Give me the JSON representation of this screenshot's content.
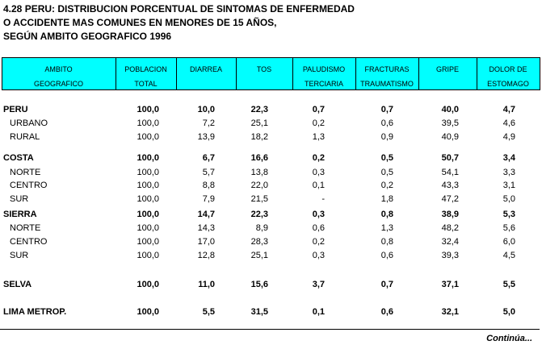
{
  "title": [
    "4.28  PERU: DISTRIBUCION PORCENTUAL DE SINTOMAS DE ENFERMEDAD",
    "O ACCIDENTE MAS COMUNES EN MENORES DE 15 AÑOS,",
    "SEGÚN AMBITO GEOGRAFICO 1996"
  ],
  "table": {
    "columns": [
      [
        "AMBITO",
        "GEOGRAFICO"
      ],
      [
        "POBLACION",
        "TOTAL"
      ],
      [
        "DIARREA"
      ],
      [
        "TOS"
      ],
      [
        "PALUDISMO",
        "TERCIARIA"
      ],
      [
        "FRACTURAS",
        "TRAUMATISMO"
      ],
      [
        "GRIPE"
      ],
      [
        "DOLOR DE",
        "ESTOMAGO"
      ]
    ],
    "rows": [
      {
        "label": "PERU",
        "bold": true,
        "cells": [
          "100,0",
          "10,0",
          "22,3",
          "0,7",
          "0,7",
          "40,0",
          "4,7"
        ]
      },
      {
        "label": "URBANO",
        "bold": false,
        "cells": [
          "100,0",
          "7,2",
          "25,1",
          "0,2",
          "0,6",
          "39,5",
          "4,6"
        ]
      },
      {
        "label": "RURAL",
        "bold": false,
        "cells": [
          "100,0",
          "13,9",
          "18,2",
          "1,3",
          "0,9",
          "40,9",
          "4,9"
        ]
      },
      {
        "label": "COSTA",
        "bold": true,
        "cells": [
          "100,0",
          "6,7",
          "16,6",
          "0,2",
          "0,5",
          "50,7",
          "3,4"
        ]
      },
      {
        "label": "NORTE",
        "bold": false,
        "cells": [
          "100,0",
          "5,7",
          "13,8",
          "0,3",
          "0,5",
          "54,1",
          "3,3"
        ]
      },
      {
        "label": "CENTRO",
        "bold": false,
        "cells": [
          "100,0",
          "8,8",
          "22,0",
          "0,1",
          "0,2",
          "43,3",
          "3,1"
        ]
      },
      {
        "label": "SUR",
        "bold": false,
        "cells": [
          "100,0",
          "7,9",
          "21,5",
          "-",
          "1,8",
          "47,2",
          "5,0"
        ]
      },
      {
        "label": "SIERRA",
        "bold": true,
        "cells": [
          "100,0",
          "14,7",
          "22,3",
          "0,3",
          "0,8",
          "38,9",
          "5,3"
        ]
      },
      {
        "label": "NORTE",
        "bold": false,
        "cells": [
          "100,0",
          "14,3",
          "8,9",
          "0,6",
          "1,3",
          "48,2",
          "5,6"
        ]
      },
      {
        "label": "CENTRO",
        "bold": false,
        "cells": [
          "100,0",
          "17,0",
          "28,3",
          "0,2",
          "0,8",
          "32,4",
          "6,0"
        ]
      },
      {
        "label": "SUR",
        "bold": false,
        "cells": [
          "100,0",
          "12,8",
          "25,1",
          "0,3",
          "0,6",
          "39,3",
          "4,5"
        ]
      },
      {
        "label": "SELVA",
        "bold": true,
        "cells": [
          "100,0",
          "11,0",
          "15,6",
          "3,7",
          "0,7",
          "37,1",
          "5,5"
        ]
      },
      {
        "label": "LIMA METROP.",
        "bold": true,
        "cells": [
          "100,0",
          "5,5",
          "31,5",
          "0,1",
          "0,6",
          "32,1",
          "5,0"
        ]
      }
    ]
  },
  "footer": "Continúa..."
}
